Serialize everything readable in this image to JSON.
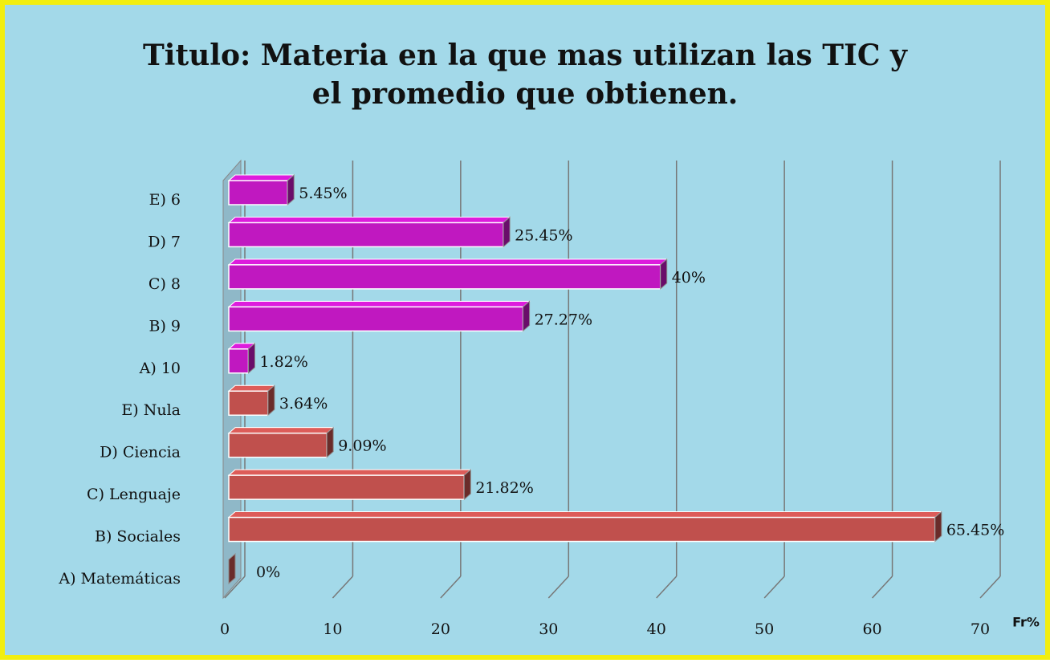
{
  "chart_data": {
    "type": "bar3d_horizontal",
    "title": [
      "Titulo: Materia en la que mas utilizan las TIC y",
      "el promedio que obtienen."
    ],
    "x_label": "Fr%",
    "categories": [
      "A) Matemáticas",
      "B) Sociales",
      "C) Lenguaje",
      "D) Ciencia",
      "E) Nula",
      "A) 10",
      "B) 9",
      "C) 8",
      "D) 7",
      "E) 6"
    ],
    "values": [
      0,
      65.45,
      21.82,
      9.09,
      3.64,
      1.82,
      27.27,
      40,
      25.45,
      5.45
    ],
    "value_labels": [
      "0%",
      "65.45%",
      "21.82%",
      "9.09%",
      "3.64%",
      "1.82%",
      "27.27%",
      "40%",
      "25.45%",
      "5.45%"
    ],
    "colors": [
      "#c0504d",
      "#c0504d",
      "#c0504d",
      "#c0504d",
      "#c0504d",
      "#c018c0",
      "#c018c0",
      "#c018c0",
      "#c018c0",
      "#c018c0"
    ],
    "xlim": [
      0,
      70
    ],
    "xticks": [
      0,
      10,
      20,
      30,
      40,
      50,
      60,
      70
    ],
    "grid": true
  }
}
